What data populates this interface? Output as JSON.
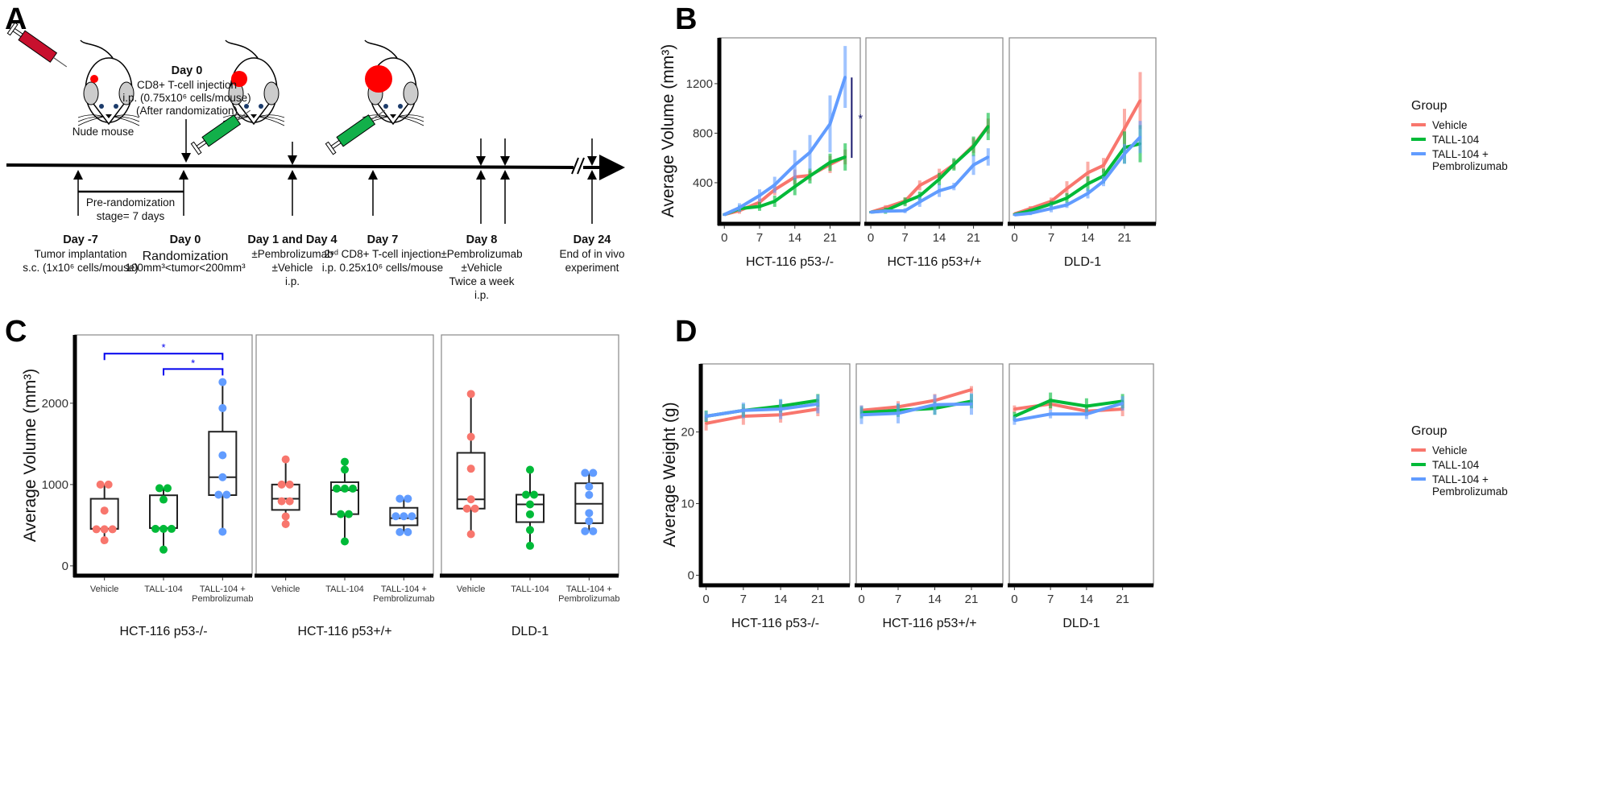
{
  "panel_labels": {
    "a": "A",
    "b": "B",
    "c": "C",
    "d": "D"
  },
  "timeline": {
    "mouse_label": "Nude mouse",
    "top_annotation": {
      "title": "Day 0",
      "lines": [
        "CD8+ T-cell injection",
        "i.p. (0.75x10⁶ cells/mouse)",
        "(After randomization)"
      ]
    },
    "bracket_label": [
      "Pre-randomization",
      "stage= 7 days"
    ],
    "events": [
      {
        "title": "Day -7",
        "lines": [
          "Tumor implantation",
          "s.c. (1x10⁶ cells/mouse)"
        ]
      },
      {
        "title": "Day 0",
        "lines": [
          "Randomization",
          "100mm³<tumor<200mm³"
        ]
      },
      {
        "title": "Day 1 and Day 4",
        "lines": [
          "±Pembrolizumab",
          "±Vehicle",
          "i.p."
        ]
      },
      {
        "title": "Day 7",
        "lines": [
          "2ⁿᵈ CD8+ T-cell injection",
          "i.p. 0.25x10⁶ cells/mouse"
        ]
      },
      {
        "title": "Day 8",
        "lines": [
          "±Pembrolizumab",
          "±Vehicle",
          "Twice a week",
          "i.p."
        ]
      },
      {
        "title": "Day 24",
        "lines": [
          "End of in vivo",
          "experiment"
        ]
      }
    ],
    "colors": {
      "tumor": "#ff0000",
      "syringe_treatment": "#12b04a"
    }
  },
  "chart_data": [
    {
      "panel": "B",
      "type": "line",
      "ylabel": "Average Volume (mm³)",
      "xlabel": "",
      "legend": {
        "title": "Group",
        "position": "right",
        "entries": [
          "Vehicle",
          "TALL-104",
          "TALL-104 +\nPembrolizumab"
        ]
      },
      "colors": [
        "#F8766D",
        "#00BA38",
        "#619CFF"
      ],
      "x": [
        0,
        3,
        7,
        10,
        14,
        17,
        21,
        24
      ],
      "xticks": [
        0,
        7,
        14,
        21
      ],
      "xlim": [
        -1,
        27
      ],
      "yticks": [
        400,
        800,
        1200
      ],
      "ylim": [
        68,
        1570
      ],
      "grid": false,
      "facets": [
        {
          "name": "HCT-116 p53-/-",
          "series": [
            {
              "name": "Vehicle",
              "values": [
                143,
                174,
                242,
                344,
                446,
                458,
                548,
                608
              ],
              "error": [
                10,
                25,
                30,
                45,
                60,
                40,
                70,
                60
              ]
            },
            {
              "name": "TALL-104",
              "values": [
                143,
                191,
                208,
                250,
                369,
                454,
                565,
                608
              ],
              "error": [
                10,
                25,
                35,
                45,
                70,
                60,
                70,
                110
              ]
            },
            {
              "name": "TALL-104 + Pembrolizumab",
              "values": [
                143,
                199,
                296,
                383,
                543,
                645,
                875,
                1254
              ],
              "error": [
                12,
                35,
                50,
                65,
                120,
                140,
                230,
                250
              ]
            }
          ],
          "significance": {
            "label": "*",
            "from": 600,
            "to": 1250
          }
        },
        {
          "name": "HCT-116 p53+/+",
          "series": [
            {
              "name": "Vehicle",
              "values": [
                162,
                199,
                252,
                378,
                463,
                548,
                701,
                858
              ],
              "error": [
                10,
                20,
                30,
                40,
                50,
                40,
                60,
                60
              ]
            },
            {
              "name": "TALL-104",
              "values": [
                162,
                174,
                245,
                293,
                429,
                548,
                693,
                854
              ],
              "error": [
                10,
                25,
                35,
                35,
                50,
                50,
                80,
                110
              ]
            },
            {
              "name": "TALL-104 + Pembrolizumab",
              "values": [
                162,
                170,
                174,
                245,
                335,
                369,
                543,
                608
              ],
              "error": [
                8,
                15,
                20,
                40,
                50,
                30,
                80,
                70
              ]
            }
          ]
        },
        {
          "name": "DLD-1",
          "series": [
            {
              "name": "Vehicle",
              "values": [
                148,
                191,
                250,
                352,
                480,
                540,
                837,
                1064
              ],
              "error": [
                10,
                20,
                30,
                60,
                90,
                60,
                160,
                230
              ]
            },
            {
              "name": "TALL-104",
              "values": [
                143,
                174,
                228,
                276,
                391,
                454,
                684,
                715
              ],
              "error": [
                10,
                15,
                25,
                40,
                60,
                60,
                130,
                150
              ]
            },
            {
              "name": "TALL-104 + Pembrolizumab",
              "values": [
                140,
                153,
                191,
                221,
                313,
                412,
                633,
                769
              ],
              "error": [
                8,
                15,
                30,
                25,
                40,
                40,
                80,
                130
              ]
            }
          ]
        }
      ]
    },
    {
      "panel": "C",
      "type": "box",
      "ylabel": "Average Volume (mm³)",
      "categories": [
        [
          "Vehicle"
        ],
        [
          "TALL-104"
        ],
        [
          "TALL-104 +",
          "Pembrolizumab"
        ]
      ],
      "colors": [
        "#F8766D",
        "#00BA38",
        "#619CFF"
      ],
      "yticks": [
        0,
        1000,
        2000
      ],
      "ylim": [
        -120,
        2840
      ],
      "grid": false,
      "facets": [
        {
          "name": "HCT-116 p53-/-",
          "groups": [
            {
              "points": [
                1000,
                1000,
                680,
                450,
                450,
                450,
                315
              ],
              "whisker_low": 315,
              "q1": 455,
              "median": 455,
              "q3": 825,
              "whisker_high": 1000
            },
            {
              "points": [
                955,
                955,
                815,
                455,
                455,
                455,
                200
              ],
              "whisker_low": 200,
              "q1": 465,
              "median": 465,
              "q3": 868,
              "whisker_high": 955
            },
            {
              "points": [
                2260,
                1940,
                1360,
                1090,
                875,
                875,
                420
              ],
              "whisker_low": 420,
              "q1": 870,
              "median": 1090,
              "q3": 1650,
              "whisker_high": 2260
            }
          ],
          "significance": [
            {
              "from": 0,
              "to": 2,
              "y": 2610,
              "label": "*"
            },
            {
              "from": 1,
              "to": 2,
              "y": 2420,
              "label": "*"
            }
          ]
        },
        {
          "name": "HCT-116 p53+/+",
          "groups": [
            {
              "points": [
                1309,
                1000,
                1000,
                795,
                795,
                608,
                514
              ],
              "whisker_low": 514,
              "q1": 688,
              "median": 826,
              "q3": 1000,
              "whisker_high": 1309
            },
            {
              "points": [
                1280,
                1184,
                950,
                950,
                950,
                636,
                636,
                301
              ],
              "whisker_low": 301,
              "q1": 636,
              "median": 930,
              "q3": 1029,
              "whisker_high": 1280
            },
            {
              "points": [
                826,
                826,
                610,
                610,
                610,
                416,
                416
              ],
              "whisker_low": 416,
              "q1": 499,
              "median": 587,
              "q3": 714,
              "whisker_high": 826
            }
          ]
        },
        {
          "name": "DLD-1",
          "groups": [
            {
              "points": [
                2114,
                1587,
                1195,
                818,
                704,
                704,
                390
              ],
              "whisker_low": 390,
              "q1": 704,
              "median": 818,
              "q3": 1390,
              "whisker_high": 2114
            },
            {
              "points": [
                1182,
                875,
                875,
                756,
                634,
                442,
                247
              ],
              "whisker_low": 247,
              "q1": 538,
              "median": 756,
              "q3": 875,
              "whisker_high": 1182
            },
            {
              "points": [
                1143,
                1143,
                974,
                873,
                649,
                551,
                426,
                426
              ],
              "whisker_low": 426,
              "q1": 525,
              "median": 764,
              "q3": 1016,
              "whisker_high": 1143
            }
          ]
        }
      ]
    },
    {
      "panel": "D",
      "type": "line",
      "ylabel": "Average Weight (g)",
      "legend": {
        "title": "Group",
        "position": "right",
        "entries": [
          "Vehicle",
          "TALL-104",
          "TALL-104 +\nPembrolizumab"
        ]
      },
      "colors": [
        "#F8766D",
        "#00BA38",
        "#619CFF"
      ],
      "x": [
        0,
        7,
        14,
        21
      ],
      "xticks": [
        0,
        7,
        14,
        21
      ],
      "xlim": [
        -1,
        27
      ],
      "yticks": [
        0,
        10,
        20
      ],
      "ylim": [
        -1.4,
        29.5
      ],
      "grid": false,
      "facets": [
        {
          "name": "HCT-116 p53-/-",
          "series": [
            {
              "name": "Vehicle",
              "values": [
                21.2,
                22.2,
                22.4,
                23.2
              ],
              "error": [
                1.0,
                1.2,
                1.1,
                1.0
              ]
            },
            {
              "name": "TALL-104",
              "values": [
                22.2,
                23.0,
                23.6,
                24.4
              ],
              "error": [
                0.8,
                0.9,
                0.9,
                0.9
              ]
            },
            {
              "name": "TALL-104 + Pembrolizumab",
              "values": [
                22.2,
                23.0,
                23.2,
                23.9
              ],
              "error": [
                0.7,
                1.1,
                1.4,
                1.3
              ]
            }
          ]
        },
        {
          "name": "HCT-116 p53+/+",
          "series": [
            {
              "name": "Vehicle",
              "values": [
                23.0,
                23.5,
                24.4,
                25.9
              ],
              "error": [
                0.7,
                0.8,
                0.9,
                0.5
              ]
            },
            {
              "name": "TALL-104",
              "values": [
                22.7,
                23.0,
                23.3,
                24.3
              ],
              "error": [
                0.8,
                0.9,
                0.9,
                1.0
              ]
            },
            {
              "name": "TALL-104 + Pembrolizumab",
              "values": [
                22.4,
                22.6,
                23.8,
                23.9
              ],
              "error": [
                1.3,
                1.4,
                1.4,
                1.5
              ]
            }
          ]
        },
        {
          "name": "DLD-1",
          "series": [
            {
              "name": "Vehicle",
              "values": [
                23.2,
                23.9,
                22.9,
                23.2
              ],
              "error": [
                0.5,
                0.8,
                0.7,
                1.0
              ]
            },
            {
              "name": "TALL-104",
              "values": [
                22.2,
                24.4,
                23.6,
                24.3
              ],
              "error": [
                0.6,
                1.1,
                1.1,
                1.0
              ]
            },
            {
              "name": "TALL-104 + Pembrolizumab",
              "values": [
                21.6,
                22.5,
                22.5,
                24.0
              ],
              "error": [
                0.6,
                0.6,
                0.7,
                1.0
              ]
            }
          ]
        }
      ]
    }
  ]
}
